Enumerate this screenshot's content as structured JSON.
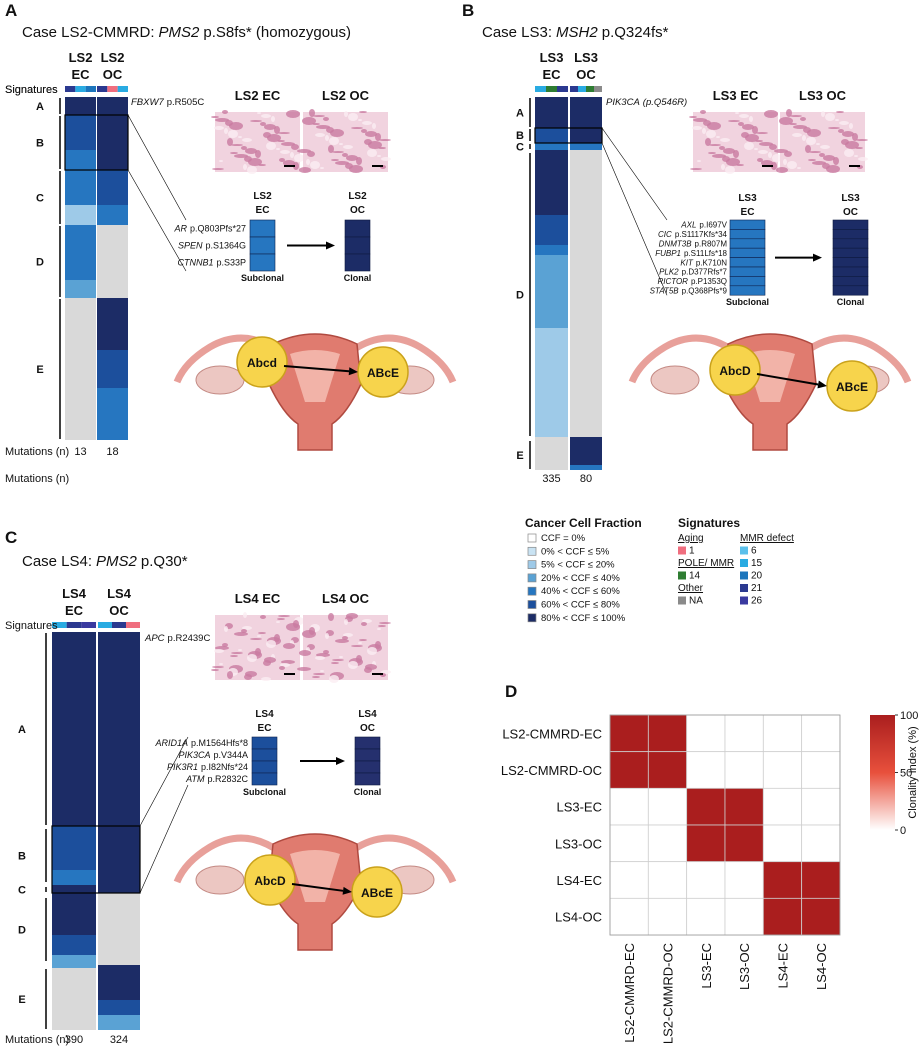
{
  "panel_A": {
    "letter": "A",
    "title": {
      "prefix": "Case LS2-CMMRD:",
      "gene": "PMS2",
      "suffix": "p.S8fs* (homozygous)"
    },
    "col_headers": [
      [
        "LS2",
        "EC"
      ],
      [
        "LS2",
        "OC"
      ]
    ],
    "signatures_label": "Signatures",
    "clusters": [
      "A",
      "B",
      "C",
      "D",
      "E"
    ],
    "top_mutation": {
      "gene": "FBXW7",
      "change": "p.R505C"
    },
    "mutations_label": "Mutations (n)",
    "mutation_counts": [
      13,
      18
    ],
    "histology": [
      "LS2 EC",
      "LS2 OC"
    ],
    "subclonal_header": [
      "LS2",
      "EC"
    ],
    "clonal_header": [
      "LS2",
      "OC"
    ],
    "driver_mutations": [
      {
        "gene": "AR",
        "change": "p.Q803Pfs*27"
      },
      {
        "gene": "SPEN",
        "change": "p.S1364G"
      },
      {
        "gene": "CTNNB1",
        "change": "p.S33P"
      }
    ],
    "subclonal_label": "Subclonal",
    "clonal_label": "Clonal",
    "clone_labels": [
      "Abcd",
      "ABcE"
    ]
  },
  "panel_B": {
    "letter": "B",
    "title": {
      "prefix": "Case LS3:",
      "gene": "MSH2",
      "suffix": "p.Q324fs*"
    },
    "col_headers": [
      [
        "LS3",
        "EC"
      ],
      [
        "LS3",
        "OC"
      ]
    ],
    "signatures_label": "Signatures",
    "clusters": [
      "A",
      "B",
      "C",
      "D",
      "E"
    ],
    "top_mutation": {
      "gene": "PIK3CA",
      "change": "(p.Q546R)"
    },
    "mutations_label": "Mutations (n)",
    "mutation_counts": [
      335,
      80
    ],
    "histology": [
      "LS3 EC",
      "LS3 OC"
    ],
    "subclonal_header": [
      "LS3",
      "EC"
    ],
    "clonal_header": [
      "LS3",
      "OC"
    ],
    "driver_mutations": [
      {
        "gene": "AXL",
        "change": "p.I697V"
      },
      {
        "gene": "CIC",
        "change": "p.S1117Kfs*34"
      },
      {
        "gene": "DNMT3B",
        "change": "p.R807M"
      },
      {
        "gene": "FUBP1",
        "change": "p.S11Lfs*18"
      },
      {
        "gene": "KIT",
        "change": "p.K710N"
      },
      {
        "gene": "PLK2",
        "change": "p.D377Rfs*7"
      },
      {
        "gene": "RICTOR",
        "change": "p.P1353Q"
      },
      {
        "gene": "STAT5B",
        "change": "p.Q368Pfs*9"
      }
    ],
    "subclonal_label": "Subclonal",
    "clonal_label": "Clonal",
    "clone_labels": [
      "AbcD",
      "ABcE"
    ]
  },
  "panel_C": {
    "letter": "C",
    "title": {
      "prefix": "Case LS4:",
      "gene": "PMS2",
      "suffix": "p.Q30*"
    },
    "col_headers": [
      [
        "LS4",
        "EC"
      ],
      [
        "LS4",
        "OC"
      ]
    ],
    "signatures_label": "Signatures",
    "clusters": [
      "A",
      "B",
      "C",
      "D",
      "E"
    ],
    "top_mutation": {
      "gene": "APC",
      "change": "p.R2439C"
    },
    "mutations_label": "Mutations (n)",
    "mutation_counts": [
      390,
      324
    ],
    "histology": [
      "LS4 EC",
      "LS4 OC"
    ],
    "subclonal_header": [
      "LS4",
      "EC"
    ],
    "clonal_header": [
      "LS4",
      "OC"
    ],
    "driver_mutations": [
      {
        "gene": "ARID1A",
        "change": "p.M1564Hfs*8"
      },
      {
        "gene": "PIK3CA",
        "change": "p.V344A"
      },
      {
        "gene": "PIK3R1",
        "change": "p.I82Nfs*24"
      },
      {
        "gene": "ATM",
        "change": "p.R2832C"
      }
    ],
    "subclonal_label": "Subclonal",
    "clonal_label": "Clonal",
    "clone_labels": [
      "AbcD",
      "ABcE"
    ]
  },
  "legend": {
    "ccf_title": "Cancer Cell Fraction",
    "ccf_items": [
      "CCF = 0%",
      "0% < CCF ≤  5%",
      "5% < CCF ≤ 20%",
      "20% < CCF ≤ 40%",
      "40% < CCF ≤ 60%",
      "60% < CCF ≤ 80%",
      "80% < CCF ≤ 100%"
    ],
    "sig_title": "Signatures",
    "aging": {
      "label": "Aging",
      "items": [
        "1"
      ]
    },
    "pole": {
      "label": "POLE/ MMR",
      "items": [
        "14"
      ]
    },
    "other": {
      "label": "Other",
      "items": [
        "NA"
      ]
    },
    "mmr": {
      "label": "MMR defect",
      "items": [
        "6",
        "15",
        "20",
        "21",
        "26"
      ]
    }
  },
  "chart_data": {
    "type": "heatmap",
    "letter": "D",
    "rows": [
      "LS2-CMMRD-EC",
      "LS2-CMMRD-OC",
      "LS3-EC",
      "LS3-OC",
      "LS4-EC",
      "LS4-OC"
    ],
    "columns": [
      "LS2-CMMRD-EC",
      "LS2-CMMRD-OC",
      "LS3-EC",
      "LS3-OC",
      "LS4-EC",
      "LS4-OC"
    ],
    "values": [
      [
        100,
        100,
        0,
        0,
        0,
        0
      ],
      [
        100,
        100,
        0,
        0,
        0,
        0
      ],
      [
        0,
        0,
        100,
        100,
        0,
        0
      ],
      [
        0,
        0,
        100,
        100,
        0,
        0
      ],
      [
        0,
        0,
        0,
        0,
        100,
        100
      ],
      [
        0,
        0,
        0,
        0,
        100,
        100
      ]
    ],
    "zlim": [
      0,
      100
    ],
    "zticks": [
      0,
      50,
      100
    ],
    "colorbar_label": "Clonality Index (%)"
  }
}
